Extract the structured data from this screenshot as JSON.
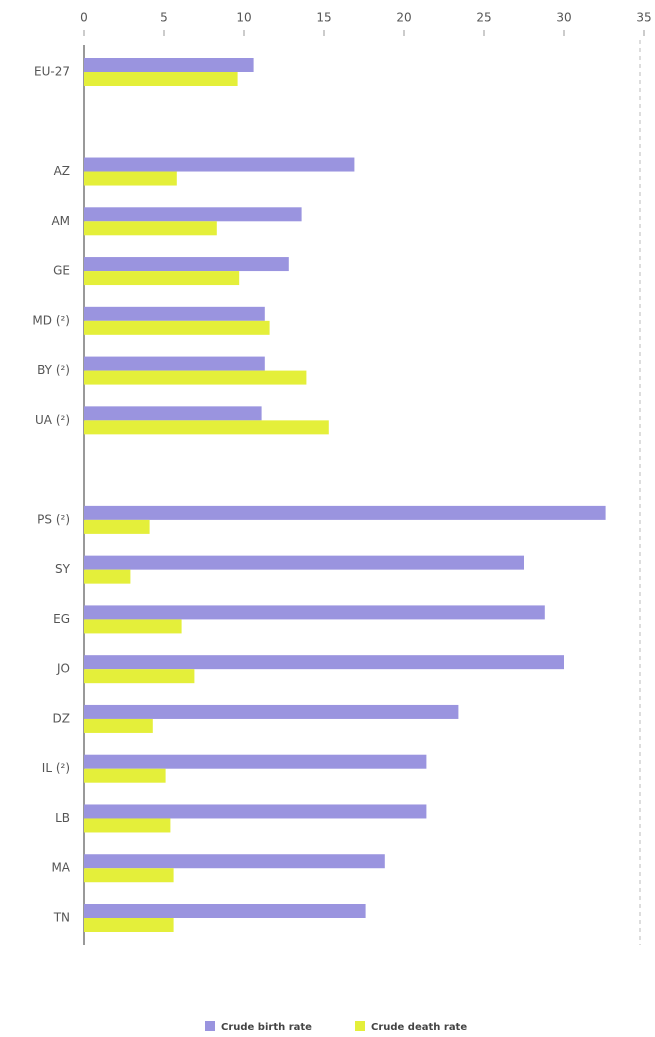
{
  "chart_data": {
    "type": "hbar",
    "categories": [
      "EU-27",
      null,
      "AZ",
      "AM",
      "GE",
      "MD (²)",
      "BY (²)",
      "UA (²)",
      null,
      "PS (²)",
      "SY",
      "EG",
      "JO",
      "DZ",
      "IL (²)",
      "LB",
      "MA",
      "TN"
    ],
    "series": [
      {
        "name": "Crude birth rate",
        "color": "#9a94df",
        "values": [
          10.6,
          null,
          16.9,
          13.6,
          12.8,
          11.3,
          11.3,
          11.1,
          null,
          32.6,
          27.5,
          28.8,
          30.0,
          23.4,
          21.4,
          21.4,
          18.8,
          17.6
        ]
      },
      {
        "name": "Crude death rate",
        "color": "#e4ef3a",
        "values": [
          9.6,
          null,
          5.8,
          8.3,
          9.7,
          11.6,
          13.9,
          15.3,
          null,
          4.1,
          2.9,
          6.1,
          6.9,
          4.3,
          5.1,
          5.4,
          5.6,
          5.6
        ]
      }
    ],
    "xlim": [
      0,
      35
    ],
    "xticks": [
      0,
      5,
      10,
      15,
      20,
      25,
      30,
      35
    ],
    "legend": "bottom"
  }
}
